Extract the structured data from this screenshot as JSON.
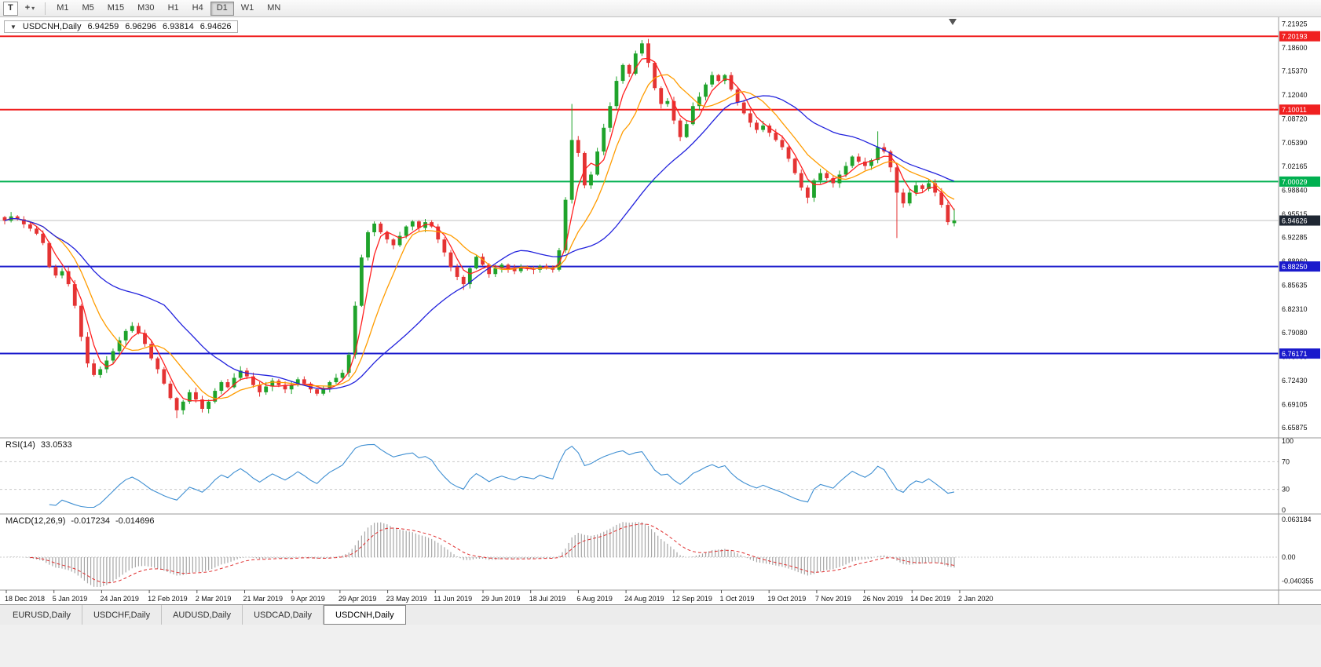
{
  "toolbar": {
    "t_button": "T",
    "pointer_glyph": "+",
    "caret_glyph": "▾",
    "timeframes": [
      "M1",
      "M5",
      "M15",
      "M30",
      "H1",
      "H4",
      "D1",
      "W1",
      "MN"
    ],
    "active_timeframe": "D1"
  },
  "header": {
    "collapse_arrow": "▼",
    "symbol": "USDCNH,Daily",
    "open": "6.94259",
    "high": "6.96296",
    "low": "6.93814",
    "close": "6.94626"
  },
  "price_scale": {
    "labels": [
      "7.21925",
      "7.18600",
      "7.15370",
      "7.12040",
      "7.08720",
      "7.05390",
      "7.02165",
      "6.98840",
      "6.95515",
      "6.92285",
      "6.88960",
      "6.85635",
      "6.82310",
      "6.79080",
      "6.75755",
      "6.72430",
      "6.69105",
      "6.65875"
    ]
  },
  "levels": [
    {
      "label": "7.20193",
      "value": 7.20193,
      "color": "#f02020"
    },
    {
      "label": "7.10011",
      "value": 7.10011,
      "color": "#f02020"
    },
    {
      "label": "7.00029",
      "value": 7.00029,
      "color": "#00b050"
    },
    {
      "label": "6.88250",
      "value": 6.8825,
      "color": "#1a1acc"
    },
    {
      "label": "6.76171",
      "value": 6.76171,
      "color": "#1a1acc"
    }
  ],
  "current_price": {
    "label": "6.94626",
    "value": 6.94626,
    "line_color": "#c0c0c0",
    "box_color": "#1f2733"
  },
  "indicators": {
    "rsi": {
      "title": "RSI(14)",
      "value": "33.0533",
      "scale_labels": [
        "100",
        "70",
        "30",
        "0"
      ],
      "level_lines": [
        70,
        30
      ],
      "line_color": "#3f8fd2"
    },
    "macd": {
      "title": "MACD(12,26,9)",
      "value_main": "-0.017234",
      "value_signal": "-0.014696",
      "scale_top_label": "0.063184",
      "scale_zero_label": "0.00",
      "scale_bottom_label": "-0.040355",
      "scale_top_value": 0.063184,
      "scale_bottom_value": -0.040355,
      "hist_color": "#a6a6a6",
      "signal_color": "#e03030"
    }
  },
  "tabs": {
    "items": [
      "EURUSD,Daily",
      "USDCHF,Daily",
      "AUDUSD,Daily",
      "USDCAD,Daily",
      "USDCNH,Daily"
    ],
    "active": "USDCNH,Daily"
  },
  "chart_data": {
    "type": "candlestick",
    "symbol": "USDCNH",
    "timeframe": "Daily",
    "last_ohlc": {
      "open": 6.94259,
      "high": 6.96296,
      "low": 6.93814,
      "close": 6.94626
    },
    "price_range": {
      "top": 7.225,
      "bottom": 6.648
    },
    "dates": [
      "18 Dec 2018",
      "5 Jan 2019",
      "24 Jan 2019",
      "12 Feb 2019",
      "2 Mar 2019",
      "21 Mar 2019",
      "9 Apr 2019",
      "29 Apr 2019",
      "23 May 2019",
      "11 Jun 2019",
      "29 Jun 2019",
      "18 Jul 2019",
      "6 Aug 2019",
      "24 Aug 2019",
      "12 Sep 2019",
      "1 Oct 2019",
      "19 Oct 2019",
      "7 Nov 2019",
      "26 Nov 2019",
      "14 Dec 2019",
      "2 Jan 2020"
    ],
    "closes": [
      6.946,
      6.952,
      6.948,
      6.941,
      6.935,
      6.928,
      6.915,
      6.882,
      6.87,
      6.876,
      6.858,
      6.828,
      6.785,
      6.748,
      6.732,
      6.74,
      6.752,
      6.765,
      6.78,
      6.793,
      6.8,
      6.79,
      6.775,
      6.755,
      6.74,
      6.72,
      6.7,
      6.683,
      6.695,
      6.708,
      6.698,
      6.685,
      6.695,
      6.71,
      6.722,
      6.715,
      6.728,
      6.738,
      6.73,
      6.718,
      6.708,
      6.716,
      6.724,
      6.718,
      6.712,
      6.718,
      6.726,
      6.72,
      6.712,
      6.706,
      6.714,
      6.722,
      6.728,
      6.735,
      6.76,
      6.828,
      6.895,
      6.93,
      6.942,
      6.93,
      6.92,
      6.912,
      6.925,
      6.938,
      6.945,
      6.936,
      6.944,
      6.938,
      6.92,
      6.902,
      6.882,
      6.868,
      6.858,
      6.88,
      6.896,
      6.885,
      6.872,
      6.88,
      6.885,
      6.88,
      6.876,
      6.882,
      6.88,
      6.878,
      6.883,
      6.88,
      6.878,
      6.905,
      6.975,
      7.058,
      7.04,
      6.995,
      7.01,
      7.042,
      7.075,
      7.105,
      7.14,
      7.162,
      7.15,
      7.178,
      7.192,
      7.165,
      7.13,
      7.108,
      7.112,
      7.085,
      7.062,
      7.08,
      7.105,
      7.118,
      7.135,
      7.148,
      7.14,
      7.148,
      7.128,
      7.11,
      7.095,
      7.082,
      7.072,
      7.078,
      7.068,
      7.058,
      7.048,
      7.032,
      7.012,
      6.992,
      6.978,
      7.002,
      7.012,
      7.005,
      6.998,
      7.01,
      7.022,
      7.035,
      7.028,
      7.022,
      7.03,
      7.048,
      7.042,
      7.02,
      6.985,
      6.97,
      6.985,
      6.995,
      6.99,
      6.998,
      6.985,
      6.968,
      6.944,
      6.9463
    ],
    "spikes": [
      {
        "i": 27,
        "low": 6.672
      },
      {
        "i": 72,
        "low": 6.85
      },
      {
        "i": 89,
        "high": 7.108
      },
      {
        "i": 100,
        "high": 7.1966
      },
      {
        "i": 126,
        "low": 6.97
      },
      {
        "i": 137,
        "high": 7.07
      },
      {
        "i": 140,
        "low": 6.922
      },
      {
        "i": 149,
        "open": 6.94259,
        "high": 6.96296,
        "low": 6.93814
      }
    ],
    "candle_up_color": "#1fa32b",
    "candle_down_color": "#e43333",
    "moving_averages": [
      {
        "name": "fast",
        "color": "#ff2020",
        "window": 4
      },
      {
        "name": "medium",
        "color": "#ff9c00",
        "window": 9
      },
      {
        "name": "slow",
        "color": "#2222dd",
        "window": 26
      }
    ]
  }
}
